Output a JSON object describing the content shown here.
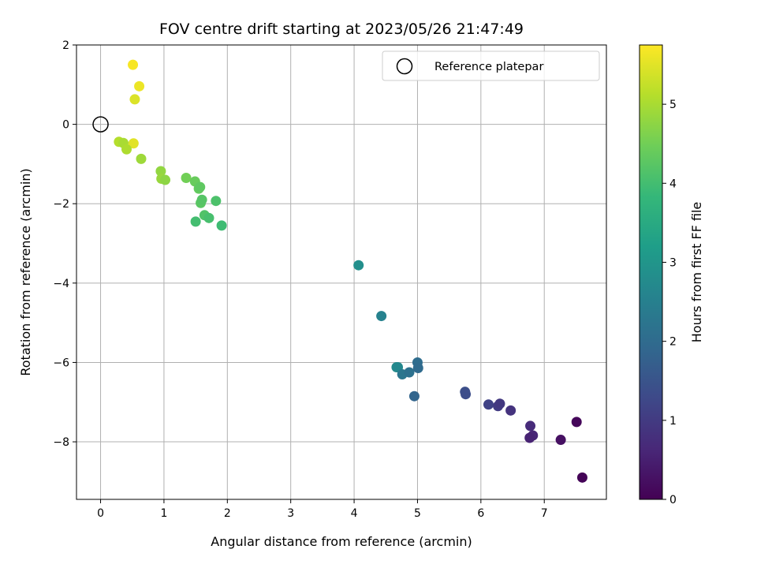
{
  "chart_data": {
    "type": "scatter",
    "title": "FOV centre drift starting at 2023/05/26 21:47:49",
    "xlabel": "Angular distance from reference (arcmin)",
    "ylabel": "Rotation from reference (arcmin)",
    "xlim": [
      -0.38,
      7.98
    ],
    "ylim": [
      -9.45,
      2.0
    ],
    "x_ticks": [
      0,
      1,
      2,
      3,
      4,
      5,
      6,
      7
    ],
    "x_tick_labels": [
      "0",
      "1",
      "2",
      "3",
      "4",
      "5",
      "6",
      "7"
    ],
    "y_ticks": [
      2,
      0,
      -2,
      -4,
      -6,
      -8
    ],
    "y_tick_labels": [
      "2",
      "0",
      "−2",
      "−4",
      "−6",
      "−8"
    ],
    "grid": true,
    "legend": {
      "placement": "top-right",
      "entries": [
        {
          "label": "Reference platepar",
          "marker": "open-circle"
        }
      ]
    },
    "colorbar": {
      "label": "Hours from first FF file",
      "range": [
        0,
        5.75
      ],
      "ticks": [
        0,
        1,
        2,
        3,
        4,
        5
      ],
      "tick_labels": [
        "0",
        "1",
        "2",
        "3",
        "4",
        "5"
      ],
      "colormap": "viridis"
    },
    "reference_point": {
      "x": 0,
      "y": 0
    },
    "series": [
      {
        "points": [
          {
            "x": 0.51,
            "y": 1.5,
            "c": 5.7
          },
          {
            "x": 0.61,
            "y": 0.96,
            "c": 5.6
          },
          {
            "x": 0.54,
            "y": 0.63,
            "c": 5.45
          },
          {
            "x": 0.52,
            "y": -0.48,
            "c": 5.5
          },
          {
            "x": 0.29,
            "y": -0.44,
            "c": 5.1
          },
          {
            "x": 0.36,
            "y": -0.47,
            "c": 5.0
          },
          {
            "x": 0.41,
            "y": -0.63,
            "c": 5.05
          },
          {
            "x": 0.64,
            "y": -0.87,
            "c": 4.9
          },
          {
            "x": 0.95,
            "y": -1.18,
            "c": 4.8
          },
          {
            "x": 0.96,
            "y": -1.37,
            "c": 4.85
          },
          {
            "x": 1.02,
            "y": -1.4,
            "c": 4.75
          },
          {
            "x": 1.35,
            "y": -1.35,
            "c": 4.5
          },
          {
            "x": 1.49,
            "y": -1.44,
            "c": 4.4
          },
          {
            "x": 1.55,
            "y": -1.62,
            "c": 4.35
          },
          {
            "x": 1.57,
            "y": -1.58,
            "c": 4.3
          },
          {
            "x": 1.58,
            "y": -1.98,
            "c": 4.25
          },
          {
            "x": 1.6,
            "y": -1.9,
            "c": 4.2
          },
          {
            "x": 1.82,
            "y": -1.93,
            "c": 4.1
          },
          {
            "x": 1.64,
            "y": -2.29,
            "c": 4.15
          },
          {
            "x": 1.71,
            "y": -2.36,
            "c": 4.05
          },
          {
            "x": 1.5,
            "y": -2.45,
            "c": 4.0
          },
          {
            "x": 1.91,
            "y": -2.55,
            "c": 3.95
          },
          {
            "x": 4.07,
            "y": -3.55,
            "c": 2.85
          },
          {
            "x": 4.43,
            "y": -4.83,
            "c": 2.55
          },
          {
            "x": 4.67,
            "y": -6.12,
            "c": 2.75
          },
          {
            "x": 4.69,
            "y": -6.12,
            "c": 2.7
          },
          {
            "x": 4.76,
            "y": -6.3,
            "c": 2.25
          },
          {
            "x": 4.87,
            "y": -6.25,
            "c": 2.15
          },
          {
            "x": 5.0,
            "y": -6.0,
            "c": 2.05
          },
          {
            "x": 5.01,
            "y": -6.14,
            "c": 2.0
          },
          {
            "x": 4.95,
            "y": -6.85,
            "c": 1.85
          },
          {
            "x": 5.75,
            "y": -6.74,
            "c": 1.4
          },
          {
            "x": 5.76,
            "y": -6.8,
            "c": 1.35
          },
          {
            "x": 6.12,
            "y": -7.06,
            "c": 1.15
          },
          {
            "x": 6.27,
            "y": -7.1,
            "c": 1.0
          },
          {
            "x": 6.3,
            "y": -7.04,
            "c": 0.95
          },
          {
            "x": 6.47,
            "y": -7.21,
            "c": 0.85
          },
          {
            "x": 6.78,
            "y": -7.6,
            "c": 0.7
          },
          {
            "x": 6.82,
            "y": -7.84,
            "c": 0.6
          },
          {
            "x": 6.77,
            "y": -7.9,
            "c": 0.55
          },
          {
            "x": 7.26,
            "y": -7.95,
            "c": 0.25
          },
          {
            "x": 7.51,
            "y": -7.5,
            "c": 0.1
          },
          {
            "x": 7.6,
            "y": -8.9,
            "c": 0.05
          }
        ]
      }
    ]
  }
}
